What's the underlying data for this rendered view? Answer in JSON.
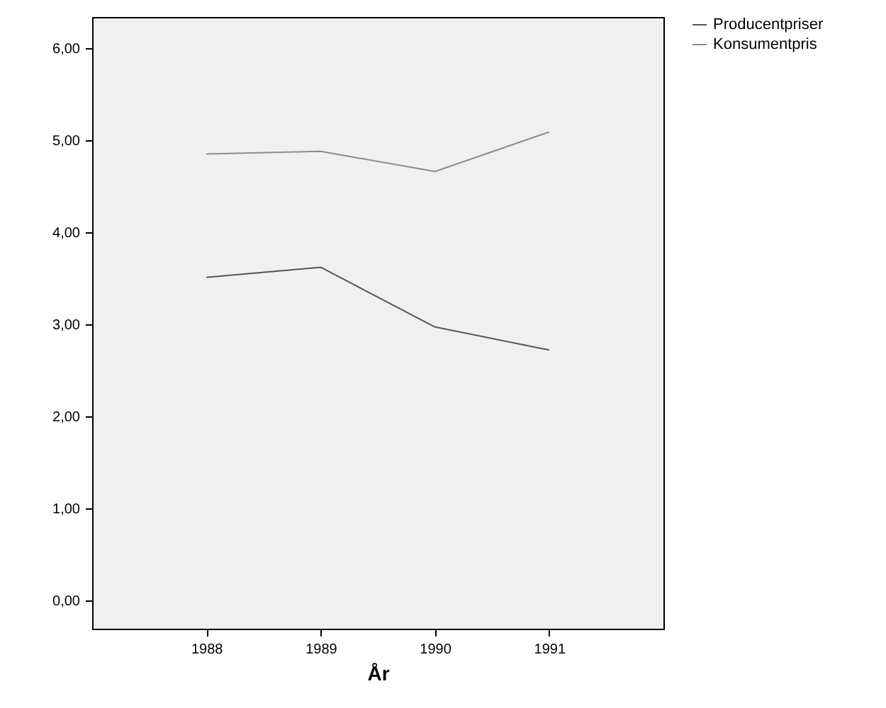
{
  "chart_data": {
    "type": "line",
    "xlabel": "År",
    "categories": [
      "1988",
      "1989",
      "1990",
      "1991"
    ],
    "series": [
      {
        "name": "Producentpriser",
        "color": "#555555",
        "values": [
          3.51,
          3.62,
          2.97,
          2.72
        ]
      },
      {
        "name": "Konsumentpris",
        "color": "#8c8c8c",
        "values": [
          4.85,
          4.88,
          4.66,
          5.09
        ]
      }
    ],
    "ylim": [
      -0.31,
      6.34
    ],
    "yticks": [
      {
        "value": 0,
        "label": "0,00"
      },
      {
        "value": 1,
        "label": "1,00"
      },
      {
        "value": 2,
        "label": "2,00"
      },
      {
        "value": 3,
        "label": "3,00"
      },
      {
        "value": 4,
        "label": "4,00"
      },
      {
        "value": 5,
        "label": "5,00"
      },
      {
        "value": 6,
        "label": "6,00"
      }
    ],
    "grid": false,
    "legend": "top right",
    "marker": "none",
    "line_style": "solid"
  }
}
